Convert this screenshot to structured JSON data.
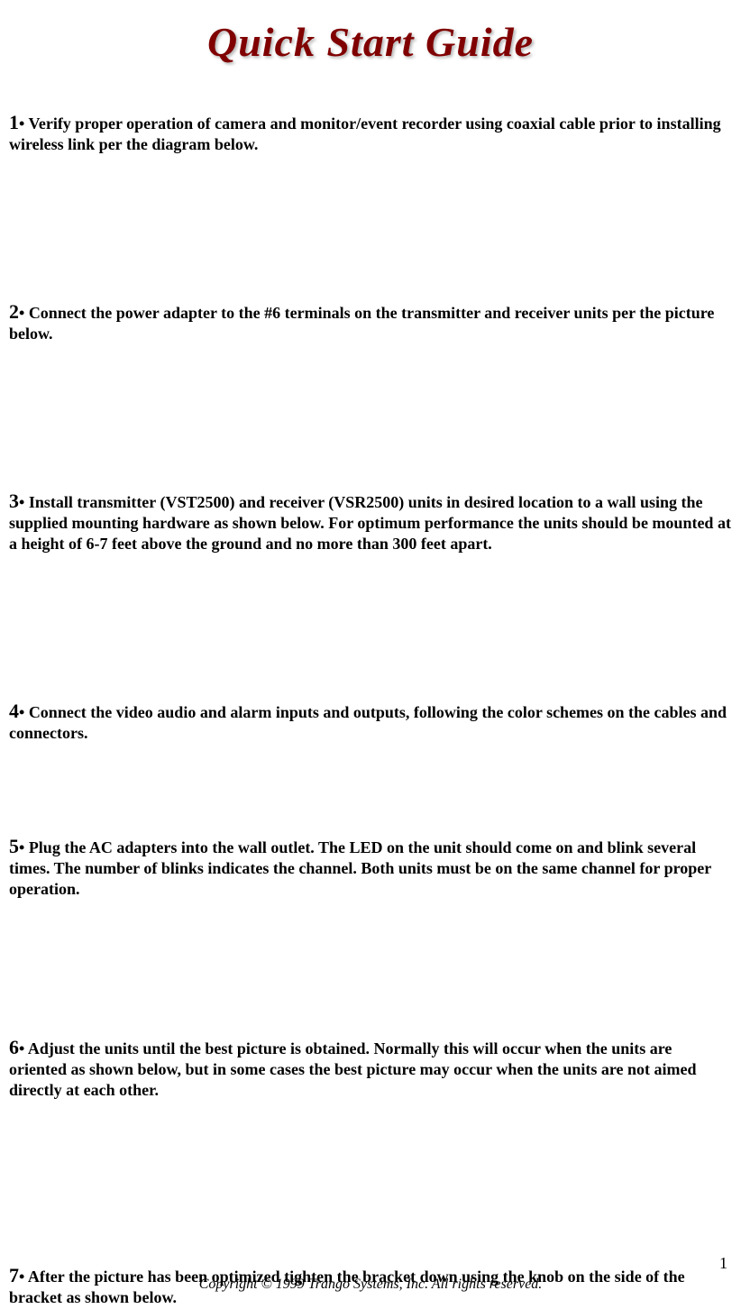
{
  "title": "Quick Start Guide",
  "steps": [
    {
      "number": "1",
      "text": " Verify proper operation of camera and monitor/event recorder using coaxial cable prior to installing wireless link per the diagram below."
    },
    {
      "number": "2",
      "text": " Connect the power adapter to the #6 terminals on the transmitter and receiver units per the picture below."
    },
    {
      "number": "3",
      "text": " Install transmitter (VST2500) and receiver (VSR2500) units  in desired location to a wall using the supplied mounting hardware as shown below.  For optimum performance the units should be mounted at a height of 6-7 feet above the ground and no more than 300 feet apart."
    },
    {
      "number": "4",
      "text": " Connect the video audio and alarm inputs and outputs,  following the color schemes on the cables and connectors."
    },
    {
      "number": "5",
      "text": " Plug the AC adapters into the wall outlet.  The LED on the unit should come on and blink several times. The number of blinks indicates the channel.  Both units must be on the same channel for proper operation."
    },
    {
      "number": "6",
      "text": " Adjust the units until the best picture is obtained.   Normally this will occur when the units are oriented as shown below, but in some cases the best picture may occur when the units are not aimed directly at each other."
    },
    {
      "number": "7",
      "text": " After the picture has been optimized tighten the bracket down using the knob on the side of the bracket as shown below."
    }
  ],
  "page_number": "1",
  "copyright": "Copyright © 1999 Trango Systems, Inc.  All rights reserved.",
  "colors": {
    "title_color": "#800000",
    "text_color": "#000000",
    "background": "#ffffff"
  }
}
